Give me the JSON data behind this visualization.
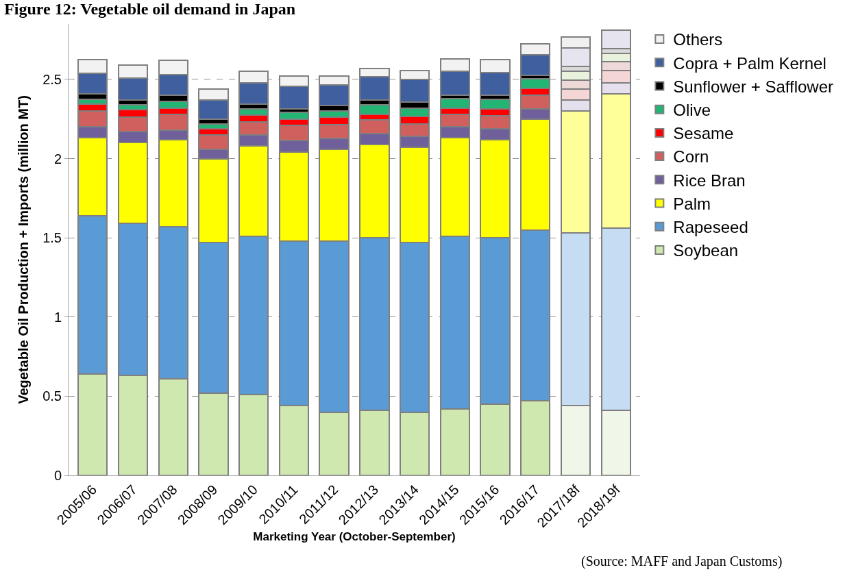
{
  "chart_data": {
    "type": "bar",
    "stacked": true,
    "title": "Figure 12: Vegetable oil demand in Japan",
    "xlabel": "Marketing Year (October-September)",
    "ylabel": "Vegetable Oil Production + Imports (million MT)",
    "annotations": [
      "(Source: MAFF and Japan Customs)"
    ],
    "categories": [
      "2005/06",
      "2006/07",
      "2007/08",
      "2008/09",
      "2009/10",
      "2010/11",
      "2011/12",
      "2012/13",
      "2013/14",
      "2014/15",
      "2015/16",
      "2016/17",
      "2017/18f",
      "2018/19f"
    ],
    "ylim": [
      0,
      2.85
    ],
    "yticks": [
      0,
      0.5,
      1,
      1.5,
      2,
      2.5
    ],
    "grid": "y",
    "legend": "right",
    "series": [
      {
        "name": "Soybean",
        "colors": [
          "#cfe8b0",
          "#cfe8b0",
          "#cfe8b0",
          "#cfe8b0",
          "#cfe8b0",
          "#cfe8b0",
          "#cfe8b0",
          "#cfe8b0",
          "#cfe8b0",
          "#cfe8b0",
          "#cfe8b0",
          "#cfe8b0",
          "#f0f7e8",
          "#f0f7e8"
        ],
        "values": [
          0.64,
          0.63,
          0.61,
          0.52,
          0.51,
          0.44,
          0.4,
          0.41,
          0.4,
          0.42,
          0.45,
          0.47,
          0.44,
          0.41
        ]
      },
      {
        "name": "Rapeseed",
        "colors": [
          "#5b9bd5",
          "#5b9bd5",
          "#5b9bd5",
          "#5b9bd5",
          "#5b9bd5",
          "#5b9bd5",
          "#5b9bd5",
          "#5b9bd5",
          "#5b9bd5",
          "#5b9bd5",
          "#5b9bd5",
          "#5b9bd5",
          "#c6dcf2",
          "#c6dcf2"
        ],
        "values": [
          1.0,
          0.96,
          0.96,
          0.95,
          1.0,
          1.04,
          1.08,
          1.09,
          1.07,
          1.09,
          1.05,
          1.08,
          1.09,
          1.15
        ]
      },
      {
        "name": "Palm",
        "colors": [
          "#ffff00",
          "#ffff00",
          "#ffff00",
          "#ffff00",
          "#ffff00",
          "#ffff00",
          "#ffff00",
          "#ffff00",
          "#ffff00",
          "#ffff00",
          "#ffff00",
          "#ffff00",
          "#ffff99",
          "#ffff99"
        ],
        "values": [
          0.49,
          0.51,
          0.55,
          0.53,
          0.57,
          0.56,
          0.58,
          0.59,
          0.6,
          0.62,
          0.62,
          0.7,
          0.77,
          0.85
        ]
      },
      {
        "name": "Rice Bran",
        "colors": [
          "#6f5f9a",
          "#6f5f9a",
          "#6f5f9a",
          "#6f5f9a",
          "#6f5f9a",
          "#6f5f9a",
          "#6f5f9a",
          "#6f5f9a",
          "#6f5f9a",
          "#6f5f9a",
          "#6f5f9a",
          "#6f5f9a",
          "#e4e0ee",
          "#e4e0ee"
        ],
        "values": [
          0.07,
          0.07,
          0.06,
          0.06,
          0.07,
          0.075,
          0.067,
          0.07,
          0.07,
          0.07,
          0.07,
          0.065,
          0.07,
          0.07
        ]
      },
      {
        "name": "Corn",
        "colors": [
          "#d0605e",
          "#d0605e",
          "#d0605e",
          "#d0605e",
          "#d0605e",
          "#d0605e",
          "#d0605e",
          "#d0605e",
          "#d0605e",
          "#d0605e",
          "#d0605e",
          "#d0605e",
          "#f4d6d6",
          "#f4d6d6"
        ],
        "values": [
          0.1,
          0.09,
          0.1,
          0.09,
          0.08,
          0.095,
          0.088,
          0.085,
          0.08,
          0.08,
          0.08,
          0.085,
          0.07,
          0.075
        ]
      },
      {
        "name": "Sesame",
        "colors": [
          "#ff0000",
          "#ff0000",
          "#ff0000",
          "#ff0000",
          "#ff0000",
          "#ff0000",
          "#ff0000",
          "#ff0000",
          "#ff0000",
          "#ff0000",
          "#ff0000",
          "#ff0000",
          "#efd8d8",
          "#efd8d8"
        ],
        "values": [
          0.045,
          0.05,
          0.04,
          0.04,
          0.045,
          0.04,
          0.045,
          0.035,
          0.045,
          0.04,
          0.045,
          0.045,
          0.055,
          0.055
        ]
      },
      {
        "name": "Olive",
        "colors": [
          "#22b573",
          "#22b573",
          "#22b573",
          "#22b573",
          "#22b573",
          "#22b573",
          "#22b573",
          "#22b573",
          "#22b573",
          "#22b573",
          "#22b573",
          "#22b573",
          "#e8f2dc",
          "#e8f2dc"
        ],
        "values": [
          0.03,
          0.03,
          0.04,
          0.03,
          0.04,
          0.04,
          0.04,
          0.06,
          0.055,
          0.06,
          0.06,
          0.06,
          0.055,
          0.055
        ]
      },
      {
        "name": "Sunflower + Safflower",
        "colors": [
          "#000000",
          "#000000",
          "#000000",
          "#000000",
          "#000000",
          "#000000",
          "#000000",
          "#000000",
          "#000000",
          "#000000",
          "#000000",
          "#000000",
          "#d9d9d9",
          "#d9d9d9"
        ],
        "values": [
          0.035,
          0.03,
          0.04,
          0.03,
          0.03,
          0.025,
          0.035,
          0.03,
          0.035,
          0.02,
          0.025,
          0.02,
          0.03,
          0.03
        ]
      },
      {
        "name": "Copra + Palm Kernel",
        "colors": [
          "#3f5f9f",
          "#3f5f9f",
          "#3f5f9f",
          "#3f5f9f",
          "#3f5f9f",
          "#3f5f9f",
          "#3f5f9f",
          "#3f5f9f",
          "#3f5f9f",
          "#3f5f9f",
          "#3f5f9f",
          "#3f5f9f",
          "#e6e4ef",
          "#e6e4ef"
        ],
        "values": [
          0.13,
          0.14,
          0.13,
          0.12,
          0.135,
          0.14,
          0.13,
          0.145,
          0.145,
          0.15,
          0.145,
          0.13,
          0.12,
          0.115
        ]
      },
      {
        "name": "Others",
        "colors": [
          "#f2f2f2",
          "#f2f2f2",
          "#f2f2f2",
          "#f2f2f2",
          "#f2f2f2",
          "#f2f2f2",
          "#f2f2f2",
          "#f2f2f2",
          "#f2f2f2",
          "#f2f2f2",
          "#f2f2f2",
          "#f2f2f2",
          "#f0f0f0",
          "#f0f0f0"
        ],
        "values": [
          0.085,
          0.08,
          0.09,
          0.07,
          0.07,
          0.065,
          0.055,
          0.055,
          0.055,
          0.08,
          0.08,
          0.07,
          0.07,
          null
        ]
      }
    ]
  }
}
